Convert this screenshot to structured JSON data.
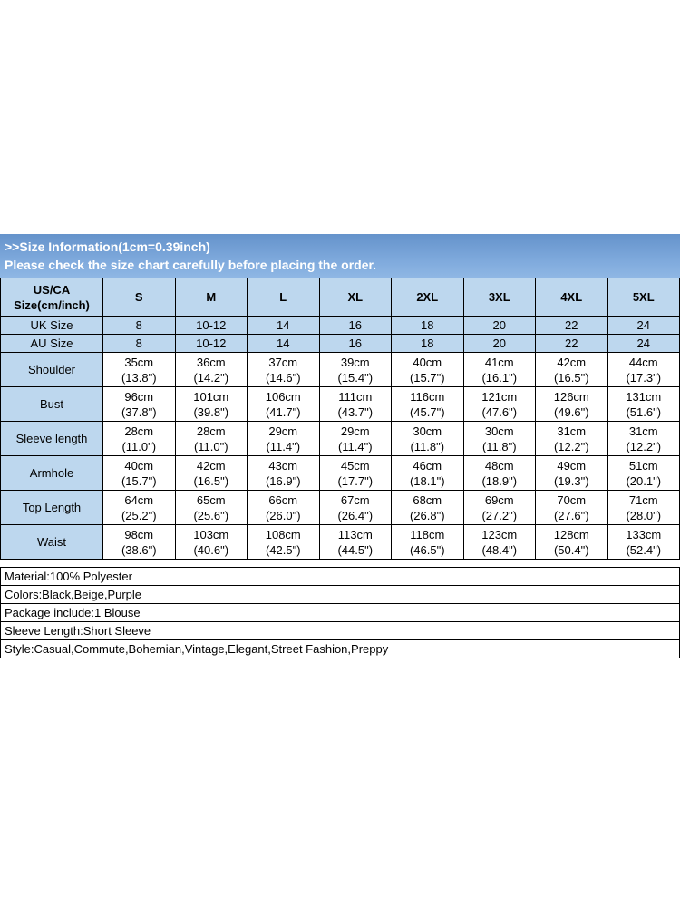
{
  "banner": {
    "title": ">>Size Information(1cm=0.39inch)",
    "subtitle": "Please check the size chart carefully before placing the order."
  },
  "table": {
    "corner": "US/CA\nSize(cm/inch)",
    "size_headers": [
      "S",
      "M",
      "L",
      "XL",
      "2XL",
      "3XL",
      "4XL",
      "5XL"
    ],
    "size_rows": [
      {
        "label": "UK Size",
        "values": [
          "8",
          "10-12",
          "14",
          "16",
          "18",
          "20",
          "22",
          "24"
        ]
      },
      {
        "label": "AU Size",
        "values": [
          "8",
          "10-12",
          "14",
          "16",
          "18",
          "20",
          "22",
          "24"
        ]
      }
    ],
    "measurement_rows": [
      {
        "label": "Shoulder",
        "values": [
          "35cm\n(13.8\")",
          "36cm\n(14.2\")",
          "37cm\n(14.6\")",
          "39cm\n(15.4\")",
          "40cm\n(15.7\")",
          "41cm\n(16.1\")",
          "42cm\n(16.5\")",
          "44cm\n(17.3\")"
        ]
      },
      {
        "label": "Bust",
        "values": [
          "96cm\n(37.8\")",
          "101cm\n(39.8\")",
          "106cm\n(41.7\")",
          "111cm\n(43.7\")",
          "116cm\n(45.7\")",
          "121cm\n(47.6\")",
          "126cm\n(49.6\")",
          "131cm\n(51.6\")"
        ]
      },
      {
        "label": "Sleeve length",
        "values": [
          "28cm\n(11.0\")",
          "28cm\n(11.0\")",
          "29cm\n(11.4\")",
          "29cm\n(11.4\")",
          "30cm\n(11.8\")",
          "30cm\n(11.8\")",
          "31cm\n(12.2\")",
          "31cm\n(12.2\")"
        ]
      },
      {
        "label": "Armhole",
        "values": [
          "40cm\n(15.7\")",
          "42cm\n(16.5\")",
          "43cm\n(16.9\")",
          "45cm\n(17.7\")",
          "46cm\n(18.1\")",
          "48cm\n(18.9\")",
          "49cm\n(19.3\")",
          "51cm\n(20.1\")"
        ]
      },
      {
        "label": "Top Length",
        "values": [
          "64cm\n(25.2\")",
          "65cm\n(25.6\")",
          "66cm\n(26.0\")",
          "67cm\n(26.4\")",
          "68cm\n(26.8\")",
          "69cm\n(27.2\")",
          "70cm\n(27.6\")",
          "71cm\n(28.0\")"
        ]
      },
      {
        "label": "Waist",
        "values": [
          "98cm\n(38.6\")",
          "103cm\n(40.6\")",
          "108cm\n(42.5\")",
          "113cm\n(44.5\")",
          "118cm\n(46.5\")",
          "123cm\n(48.4\")",
          "128cm\n(50.4\")",
          "133cm\n(52.4\")"
        ]
      }
    ]
  },
  "product_info": {
    "lines": [
      "Material:100% Polyester",
      "Colors:Black,Beige,Purple",
      "Package include:1 Blouse",
      "Sleeve Length:Short Sleeve",
      "Style:Casual,Commute,Bohemian,Vintage,Elegant,Street Fashion,Preppy"
    ]
  },
  "colors": {
    "banner_blue_top": "#6593cb",
    "banner_blue_bottom": "#8fb7e4",
    "cell_light_blue": "#bdd7ee",
    "cell_white": "#ffffff",
    "border_black": "#000000",
    "banner_text": "#ffffff",
    "body_text": "#000000"
  }
}
